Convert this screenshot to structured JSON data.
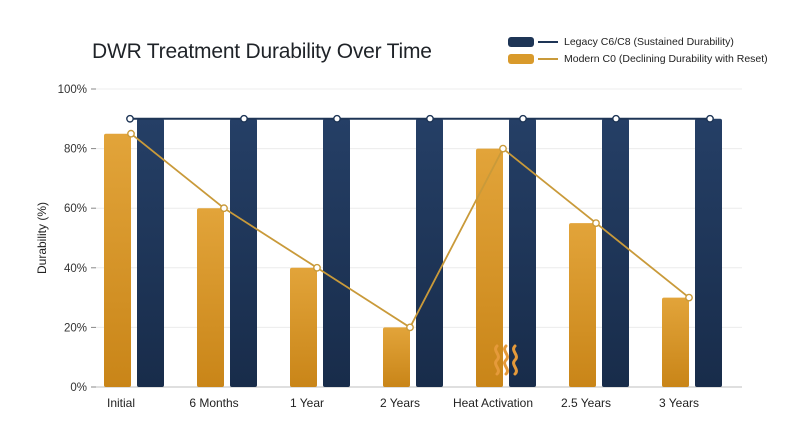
{
  "chart_data": {
    "type": "bar",
    "title": "DWR Treatment Durability Over Time",
    "ylabel": "Durability (%)",
    "xlabel": "",
    "categories": [
      "Initial",
      "6 Months",
      "1 Year",
      "2 Years",
      "Heat Activation",
      "2.5 Years",
      "3 Years"
    ],
    "yticks": [
      "0%",
      "20%",
      "40%",
      "60%",
      "80%",
      "100%"
    ],
    "ylim": [
      0,
      100
    ],
    "grid": true,
    "legend_position": "top-right",
    "series": [
      {
        "name": "Modern C0 (Declining Durability with Reset)",
        "color": "#d99a2b",
        "values": [
          85,
          60,
          40,
          20,
          80,
          55,
          30
        ]
      },
      {
        "name": "Legacy C6/C8 (Sustained Durability)",
        "color": "#1e3556",
        "values": [
          90,
          90,
          90,
          90,
          90,
          90,
          90
        ]
      }
    ],
    "lines": [
      {
        "name": "Legacy C6/C8 (Sustained Durability)",
        "color": "#1e3556",
        "values": [
          90,
          90,
          90,
          90,
          90,
          90,
          90
        ]
      },
      {
        "name": "Modern C0 (Declining Durability with Reset)",
        "color": "#c99a3a",
        "values": [
          85,
          60,
          40,
          20,
          80,
          55,
          30
        ]
      }
    ],
    "annotations": [
      {
        "category": "Heat Activation",
        "icon": "heat-waves-icon"
      }
    ]
  }
}
